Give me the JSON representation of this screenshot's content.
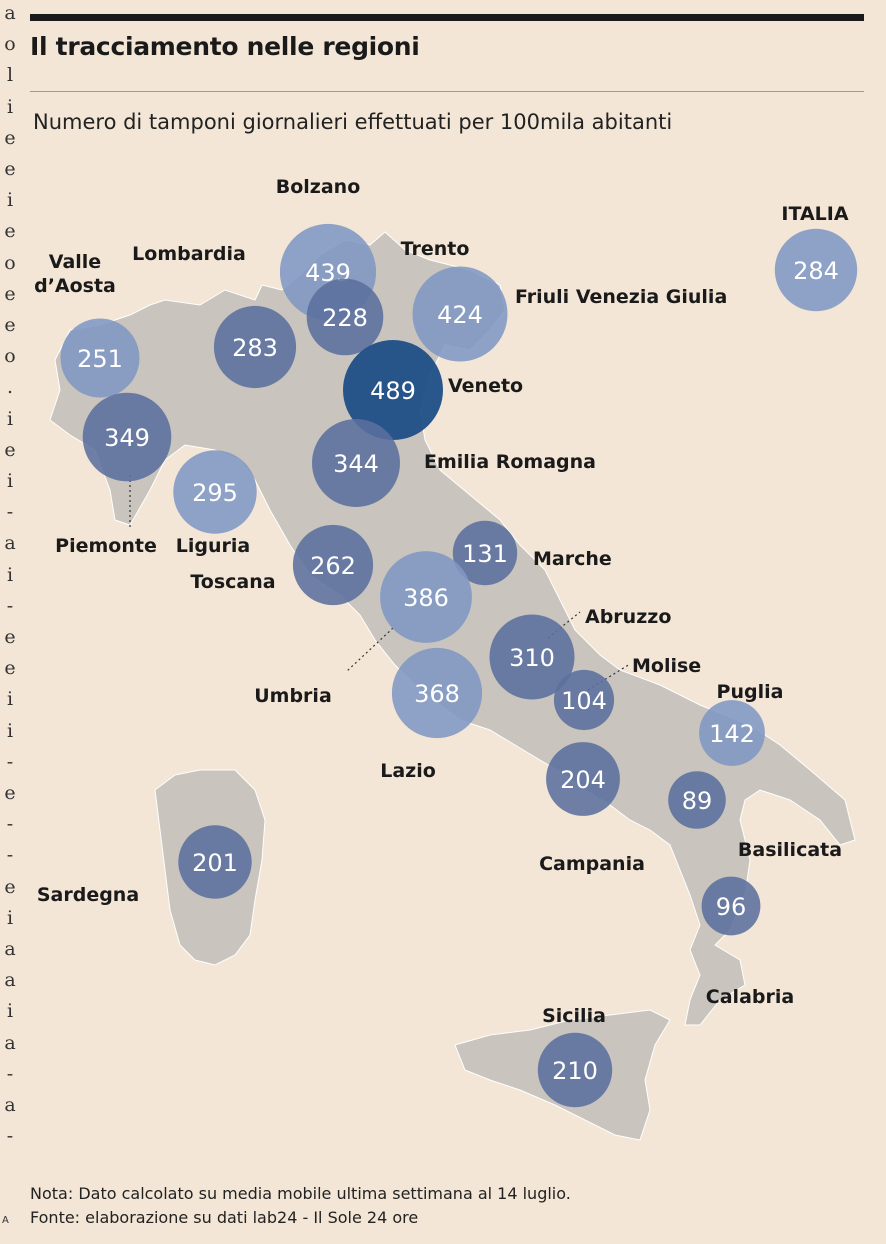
{
  "title": "Il tracciamento nelle regioni",
  "subtitle": "Numero di tamponi giornalieri effettuati per 100mila abitanti",
  "gutter_letters": [
    "a",
    "o",
    "l",
    "i",
    "e",
    "e",
    "i",
    "e",
    "o",
    "e",
    "e",
    "o",
    ".",
    "i",
    "e",
    "i",
    "-",
    "a",
    "i",
    "-",
    "e",
    "e",
    "i",
    "i",
    "-",
    "e",
    "-",
    "-",
    "e",
    "i",
    "a",
    "a",
    "i",
    "a",
    "-",
    "a",
    "-"
  ],
  "colors": {
    "background": "#f3e6d6",
    "land": "#c9c4bd",
    "bubble_default": "#5b6f9e",
    "bubble_light": "#7f97c4",
    "bubble_max": "#1f4f87"
  },
  "map": {
    "regions": [
      {
        "name": "Valle\nd’Aosta",
        "value": 251
      },
      {
        "name": "Piemonte",
        "value": 349
      },
      {
        "name": "Lombardia",
        "value": 283
      },
      {
        "name": "Liguria",
        "value": 295
      },
      {
        "name": "Bolzano",
        "value": 439
      },
      {
        "name": "Trento",
        "value": 228
      },
      {
        "name": "Veneto",
        "value": 489
      },
      {
        "name": "Friuli Venezia Giulia",
        "value": 424
      },
      {
        "name": "Emilia Romagna",
        "value": 344
      },
      {
        "name": "Toscana",
        "value": 262
      },
      {
        "name": "Marche",
        "value": 131
      },
      {
        "name": "Umbria",
        "value": 386
      },
      {
        "name": "Lazio",
        "value": 368
      },
      {
        "name": "Abruzzo",
        "value": 310
      },
      {
        "name": "Molise",
        "value": 104
      },
      {
        "name": "Campania",
        "value": 204
      },
      {
        "name": "Puglia",
        "value": 142
      },
      {
        "name": "Basilicata",
        "value": 89
      },
      {
        "name": "Calabria",
        "value": 96
      },
      {
        "name": "Sicilia",
        "value": 210
      },
      {
        "name": "Sardegna",
        "value": 201
      },
      {
        "name": "ITALIA",
        "value": 284
      }
    ]
  },
  "note": "Nota: Dato calcolato su media mobile ultima settimana al 14 luglio.",
  "source": "Fonte: elaborazione su dati lab24 - Il Sole 24 ore",
  "corner_mark": "A"
}
